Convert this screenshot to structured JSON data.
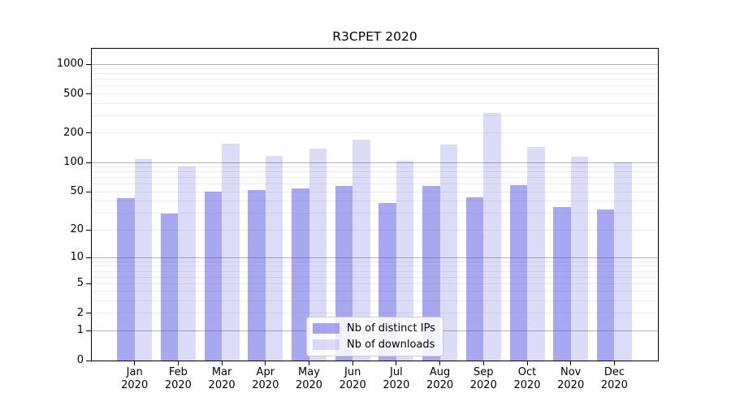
{
  "title": "R3CPET 2020",
  "legend": {
    "items": [
      {
        "label": "Nb of distinct IPs",
        "color": "rgba(62,62,222,0.45)"
      },
      {
        "label": "Nb of downloads",
        "color": "rgba(62,62,222,0.18)"
      }
    ]
  },
  "chart_data": {
    "type": "bar",
    "title": "R3CPET 2020",
    "categories": [
      "Jan",
      "Feb",
      "Mar",
      "Apr",
      "May",
      "Jun",
      "Jul",
      "Aug",
      "Sep",
      "Oct",
      "Nov",
      "Dec"
    ],
    "year_label": "2020",
    "series": [
      {
        "name": "Nb of distinct IPs",
        "color": "rgba(62,62,222,0.45)",
        "values": [
          43,
          30,
          50,
          52,
          54,
          58,
          38,
          58,
          44,
          59,
          35,
          33
        ]
      },
      {
        "name": "Nb of downloads",
        "color": "rgba(62,62,222,0.18)",
        "values": [
          108,
          92,
          155,
          118,
          140,
          172,
          105,
          154,
          320,
          145,
          115,
          100
        ]
      }
    ],
    "xlabel": "",
    "ylabel": "",
    "yscale": "log1p",
    "ylim": [
      0,
      1430
    ],
    "y_ticks": [
      0,
      1,
      2,
      5,
      10,
      20,
      50,
      100,
      200,
      500,
      1000
    ],
    "grid": {
      "major": [
        1,
        10,
        100,
        1000
      ],
      "minor": [
        2,
        3,
        4,
        5,
        6,
        7,
        8,
        9,
        20,
        30,
        40,
        50,
        60,
        70,
        80,
        90,
        200,
        300,
        400,
        500,
        600,
        700,
        800,
        900
      ]
    },
    "legend_position": "lower center"
  }
}
